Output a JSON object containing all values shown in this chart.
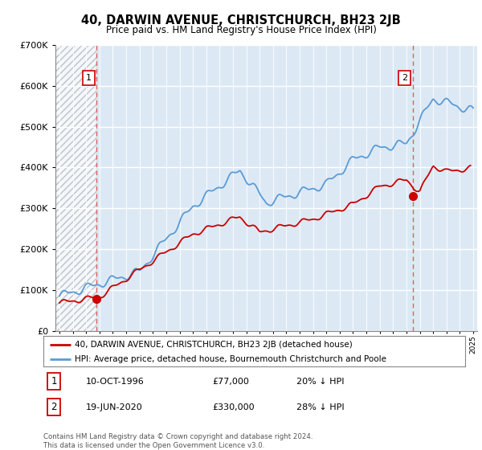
{
  "title": "40, DARWIN AVENUE, CHRISTCHURCH, BH23 2JB",
  "subtitle": "Price paid vs. HM Land Registry's House Price Index (HPI)",
  "legend_line1": "40, DARWIN AVENUE, CHRISTCHURCH, BH23 2JB (detached house)",
  "legend_line2": "HPI: Average price, detached house, Bournemouth Christchurch and Poole",
  "annotation1_label": "1",
  "annotation1_date": "10-OCT-1996",
  "annotation1_price": "£77,000",
  "annotation1_hpi": "20% ↓ HPI",
  "annotation2_label": "2",
  "annotation2_date": "19-JUN-2020",
  "annotation2_price": "£330,000",
  "annotation2_hpi": "28% ↓ HPI",
  "footer": "Contains HM Land Registry data © Crown copyright and database right 2024.\nThis data is licensed under the Open Government Licence v3.0.",
  "sale1_year": 1996.78,
  "sale1_price": 77000,
  "sale2_year": 2020.46,
  "sale2_price": 330000,
  "hpi_color": "#5b9bd5",
  "price_color": "#cc0000",
  "vline_color": "#e06060",
  "ylim_max": 700000,
  "xmin": 1993.7,
  "xmax": 2025.3
}
